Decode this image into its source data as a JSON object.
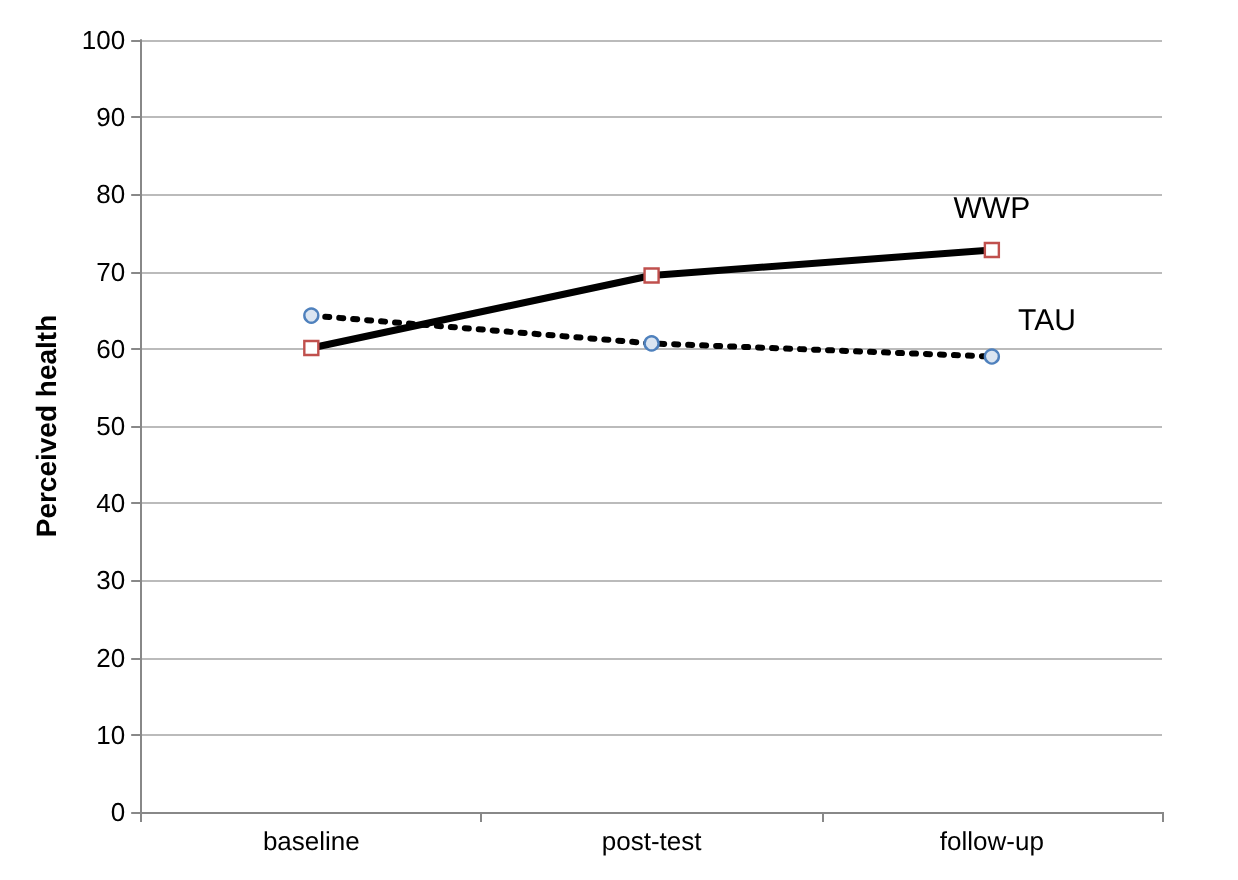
{
  "chart_data": {
    "type": "line",
    "ylabel": "Perceived health",
    "categories": [
      "baseline",
      "post-test",
      "follow-up"
    ],
    "series": [
      {
        "name": "WWP",
        "color": "#000000",
        "values": [
          60.1,
          69.5,
          72.8
        ],
        "marker": "square",
        "line_style": "solid"
      },
      {
        "name": "TAU",
        "color": "#000000",
        "values": [
          64.3,
          60.7,
          59.0
        ],
        "marker": "circle",
        "line_style": "dotted"
      }
    ],
    "ylim": [
      0,
      100
    ],
    "yticks": [
      0,
      10,
      20,
      30,
      40,
      50,
      60,
      70,
      80,
      90,
      100
    ],
    "grid": "y",
    "legend": false
  }
}
